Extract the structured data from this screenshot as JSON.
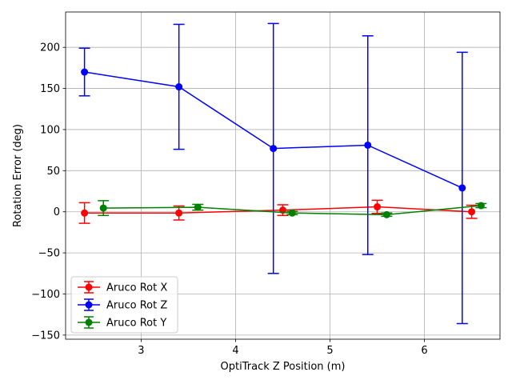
{
  "chart_data": {
    "type": "line",
    "title": "",
    "xlabel": "OptiTrack Z Position (m)",
    "ylabel": "Rotation Error (deg)",
    "xlim": [
      2.2,
      6.8
    ],
    "ylim": [
      -155,
      243
    ],
    "xticks": [
      3,
      4,
      5,
      6
    ],
    "yticks": [
      -150,
      -100,
      -50,
      0,
      50,
      100,
      150,
      200
    ],
    "ytick_labels": [
      "−150",
      "−100",
      "−50",
      "0",
      "50",
      "100",
      "150",
      "200"
    ],
    "xtick_labels": [
      "3",
      "4",
      "5",
      "6"
    ],
    "grid": true,
    "legend_position": "lower-left",
    "series": [
      {
        "name": "Aruco Rot X",
        "color": "#ff0000",
        "x": [
          2.4,
          3.4,
          4.5,
          5.5,
          6.5
        ],
        "y": [
          -1.5,
          -1.5,
          2,
          6,
          0
        ],
        "err": [
          12.5,
          8.5,
          6.5,
          8,
          8
        ]
      },
      {
        "name": "Aruco Rot Z",
        "color": "#0000ff",
        "x": [
          2.4,
          3.4,
          4.4,
          5.4,
          6.4
        ],
        "y": [
          170,
          152,
          77,
          81,
          29
        ],
        "err": [
          29,
          76,
          152,
          133,
          165
        ]
      },
      {
        "name": "Aruco Rot Y",
        "color": "#008000",
        "x": [
          2.6,
          3.6,
          4.6,
          5.6,
          6.6
        ],
        "y": [
          4.5,
          5.5,
          -1.5,
          -3.5,
          7.5
        ],
        "err": [
          9,
          3.5,
          2,
          2,
          2.5
        ]
      }
    ]
  }
}
